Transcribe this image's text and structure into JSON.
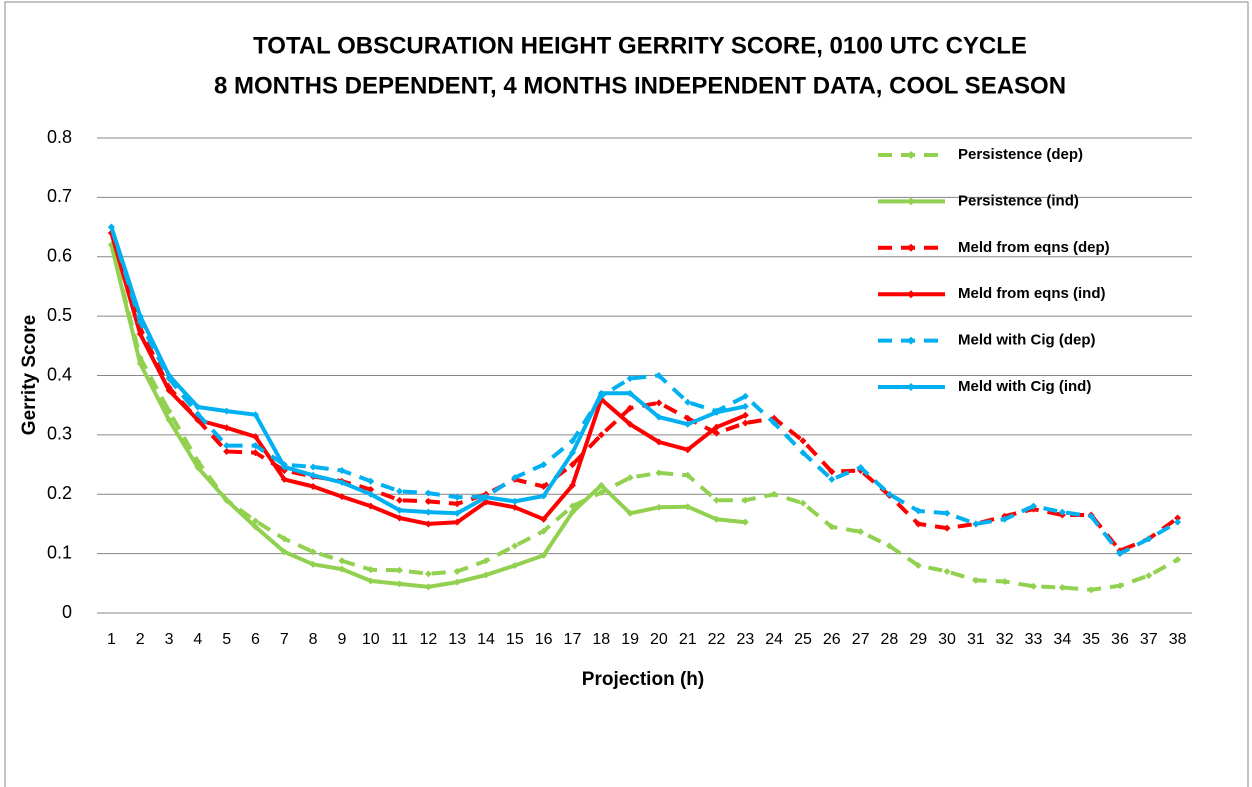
{
  "chart_data": {
    "type": "line",
    "title": [
      "TOTAL OBSCURATION HEIGHT GERRITY SCORE, 0100 UTC CYCLE",
      "8 MONTHS DEPENDENT, 4 MONTHS INDEPENDENT DATA, COOL SEASON"
    ],
    "y_label": "Gerrity Score",
    "x_label": "Projection (h)",
    "categories": [
      "1",
      "2",
      "3",
      "4",
      "5",
      "6",
      "7",
      "8",
      "9",
      "10",
      "11",
      "12",
      "13",
      "14",
      "15",
      "16",
      "17",
      "18",
      "19",
      "20",
      "21",
      "22",
      "23",
      "24",
      "25",
      "26",
      "27",
      "28",
      "29",
      "30",
      "31",
      "32",
      "33",
      "34",
      "35",
      "36",
      "37",
      "38"
    ],
    "ylim": [
      0,
      0.8
    ],
    "yticks": [
      0,
      0.1,
      0.2,
      0.3,
      0.4,
      0.5,
      0.6,
      0.7,
      0.8
    ],
    "grid": true,
    "legend": "right",
    "series": [
      {
        "name": "Persistence (dep)",
        "color": "#92d050",
        "style": "dashed",
        "values": [
          0.62,
          0.43,
          0.34,
          0.255,
          0.19,
          0.155,
          0.125,
          0.103,
          0.088,
          0.073,
          0.072,
          0.066,
          0.07,
          0.088,
          0.113,
          0.138,
          0.18,
          0.203,
          0.228,
          0.236,
          0.232,
          0.19,
          0.19,
          0.2,
          0.185,
          0.145,
          0.137,
          0.113,
          0.08,
          0.07,
          0.055,
          0.053,
          0.045,
          0.043,
          0.039,
          0.046,
          0.063,
          0.09
        ]
      },
      {
        "name": "Persistence (ind)",
        "color": "#92d050",
        "style": "solid",
        "values": [
          0.62,
          0.42,
          0.325,
          0.245,
          0.19,
          0.145,
          0.103,
          0.082,
          0.074,
          0.054,
          0.049,
          0.044,
          0.052,
          0.064,
          0.08,
          0.097,
          0.17,
          0.215,
          0.168,
          0.178,
          0.179,
          0.158,
          0.153,
          null,
          null,
          null,
          null,
          null,
          null,
          null,
          null,
          null,
          null,
          null,
          null,
          null,
          null,
          null
        ]
      },
      {
        "name": "Meld from eqns (dep)",
        "color": "#ff0000",
        "style": "dashed",
        "values": [
          0.64,
          0.48,
          0.38,
          0.325,
          0.272,
          0.27,
          0.24,
          0.23,
          0.222,
          0.208,
          0.19,
          0.188,
          0.184,
          0.2,
          0.225,
          0.213,
          0.25,
          0.3,
          0.345,
          0.354,
          0.328,
          0.303,
          0.32,
          0.328,
          0.29,
          0.238,
          0.24,
          0.198,
          0.15,
          0.143,
          0.15,
          0.163,
          0.175,
          0.165,
          0.165,
          0.105,
          0.125,
          0.16
        ]
      },
      {
        "name": "Meld from eqns (ind)",
        "color": "#ff0000",
        "style": "solid",
        "values": [
          0.64,
          0.47,
          0.375,
          0.325,
          0.312,
          0.297,
          0.225,
          0.213,
          0.196,
          0.18,
          0.16,
          0.15,
          0.153,
          0.187,
          0.178,
          0.158,
          0.215,
          0.36,
          0.318,
          0.288,
          0.275,
          0.313,
          0.333,
          null,
          null,
          null,
          null,
          null,
          null,
          null,
          null,
          null,
          null,
          null,
          null,
          null,
          null,
          null
        ]
      },
      {
        "name": "Meld with Cig (dep)",
        "color": "#00b0f0",
        "style": "dashed",
        "values": [
          0.65,
          0.49,
          0.395,
          0.335,
          0.282,
          0.282,
          0.25,
          0.246,
          0.24,
          0.222,
          0.205,
          0.202,
          0.195,
          0.196,
          0.228,
          0.25,
          0.29,
          0.365,
          0.395,
          0.4,
          0.355,
          0.34,
          0.365,
          0.32,
          0.27,
          0.225,
          0.245,
          0.2,
          0.172,
          0.168,
          0.15,
          0.158,
          0.18,
          0.17,
          0.163,
          0.1,
          0.125,
          0.153
        ]
      },
      {
        "name": "Meld with Cig (ind)",
        "color": "#00b0f0",
        "style": "solid",
        "values": [
          0.65,
          0.5,
          0.4,
          0.347,
          0.34,
          0.334,
          0.246,
          0.232,
          0.22,
          0.2,
          0.173,
          0.17,
          0.168,
          0.195,
          0.188,
          0.197,
          0.27,
          0.37,
          0.37,
          0.33,
          0.318,
          0.338,
          0.348,
          null,
          null,
          null,
          null,
          null,
          null,
          null,
          null,
          null,
          null,
          null,
          null,
          null,
          null,
          null
        ]
      }
    ]
  }
}
